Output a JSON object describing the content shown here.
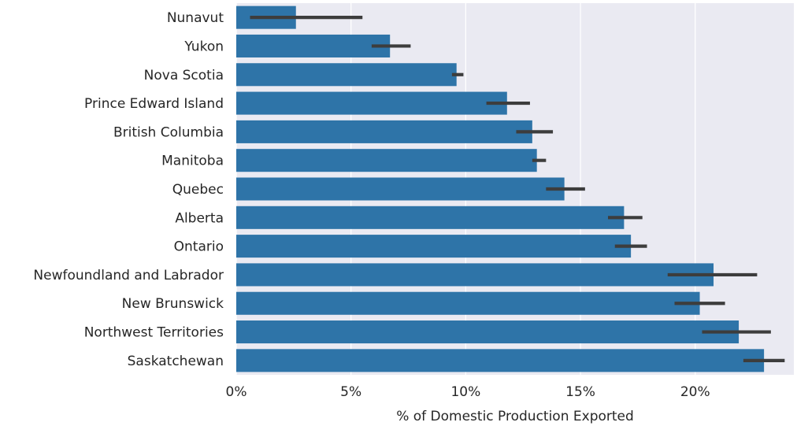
{
  "chart_data": {
    "type": "bar",
    "orientation": "horizontal",
    "categories": [
      "Nunavut",
      "Yukon",
      "Nova Scotia",
      "Prince Edward Island",
      "British Columbia",
      "Manitoba",
      "Quebec",
      "Alberta",
      "Ontario",
      "Newfoundland and Labrador",
      "New Brunswick",
      "Northwest Territories",
      "Saskatchewan"
    ],
    "values": [
      2.6,
      6.7,
      9.6,
      11.8,
      12.9,
      13.1,
      14.3,
      16.9,
      17.2,
      20.8,
      20.2,
      21.9,
      23.0
    ],
    "error_low": [
      0.6,
      5.9,
      9.4,
      10.9,
      12.2,
      12.9,
      13.5,
      16.2,
      16.5,
      18.8,
      19.1,
      20.3,
      22.1
    ],
    "error_high": [
      5.5,
      7.6,
      9.9,
      12.8,
      13.8,
      13.5,
      15.2,
      17.7,
      17.9,
      22.7,
      21.3,
      23.3,
      23.9
    ],
    "xlabel": "% of Domestic Production Exported",
    "ylabel": "",
    "xlim": [
      0,
      24.3
    ],
    "xticks": [
      0,
      5,
      10,
      15,
      20
    ],
    "xtick_labels": [
      "0%",
      "5%",
      "10%",
      "15%",
      "20%"
    ],
    "grid": true,
    "colors": {
      "bar": "#2e74a8",
      "error_bar": "#3d3d3d",
      "background": "#eaeaf2",
      "grid": "#ffffff"
    }
  }
}
